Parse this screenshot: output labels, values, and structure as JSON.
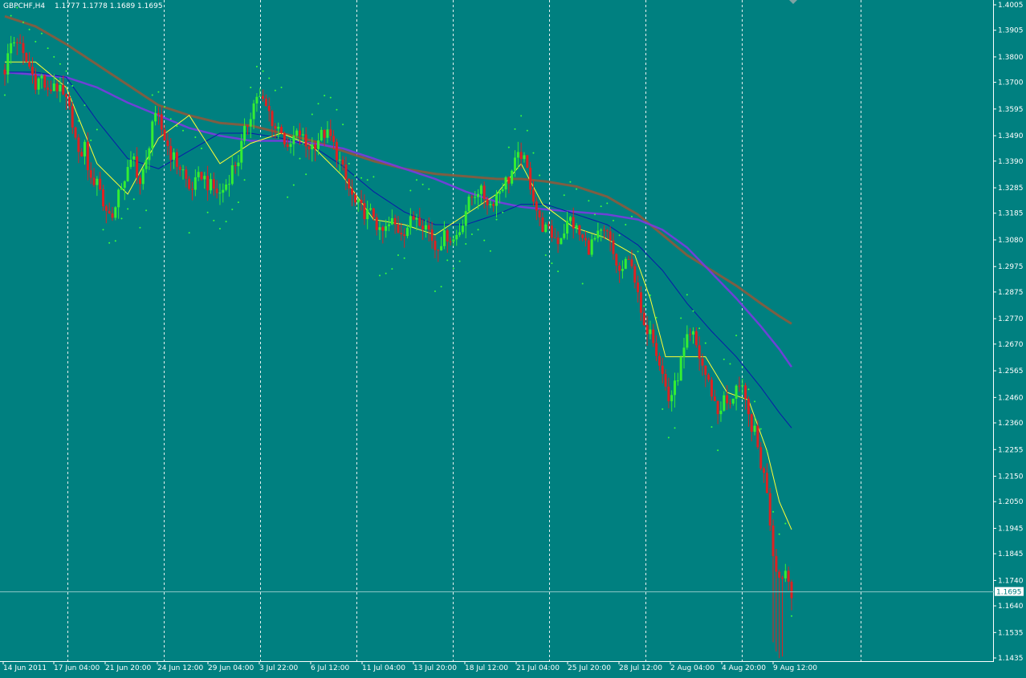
{
  "header": {
    "symbol_tf": "GBPCHF,H4",
    "ohlc": "1.1777 1.1778 1.1689 1.1695"
  },
  "colors": {
    "background": "#008080",
    "bull_candle": "#33ee33",
    "bear_candle": "#dd2222",
    "ma_fast": "#ffff33",
    "ma_slow_blue": "#0a1aa8",
    "ma_violet": "#7a3ae0",
    "ma_brown": "#8b5a3c",
    "psar": "#3aff3a",
    "grid": "#ffffff",
    "current_price_line": "#8fc7c7"
  },
  "chart_data": {
    "type": "candlestick",
    "symbol": "GBPCHF",
    "timeframe": "H4",
    "y_ticks": [
      "1.4005",
      "1.3905",
      "1.3800",
      "1.3700",
      "1.3595",
      "1.3490",
      "1.3390",
      "1.3285",
      "1.3185",
      "1.3080",
      "1.2975",
      "1.2875",
      "1.2770",
      "1.2670",
      "1.2565",
      "1.2460",
      "1.2360",
      "1.2255",
      "1.2150",
      "1.2050",
      "1.1945",
      "1.1845",
      "1.1740",
      "1.1640",
      "1.1535",
      "1.1435"
    ],
    "ylim": [
      1.1435,
      1.4005
    ],
    "current_price": "1.1695",
    "x_ticks": [
      "14 Jun 2011",
      "17 Jun 04:00",
      "21 Jun 20:00",
      "24 Jun 12:00",
      "29 Jun 04:00",
      "3 Jul 22:00",
      "6 Jul 12:00",
      "11 Jul 04:00",
      "13 Jul 20:00",
      "18 Jul 12:00",
      "21 Jul 04:00",
      "25 Jul 20:00",
      "28 Jul 12:00",
      "2 Aug 04:00",
      "4 Aug 20:00",
      "9 Aug 12:00"
    ],
    "close_path": [
      [
        0,
        1.375
      ],
      [
        2,
        1.385
      ],
      [
        4,
        1.387
      ],
      [
        6,
        1.38
      ],
      [
        8,
        1.376
      ],
      [
        10,
        1.37
      ],
      [
        12,
        1.372
      ],
      [
        14,
        1.365
      ],
      [
        16,
        1.37
      ],
      [
        18,
        1.366
      ],
      [
        20,
        1.362
      ],
      [
        22,
        1.355
      ],
      [
        24,
        1.34
      ],
      [
        26,
        1.345
      ],
      [
        28,
        1.33
      ],
      [
        30,
        1.333
      ],
      [
        32,
        1.322
      ],
      [
        34,
        1.318
      ],
      [
        36,
        1.32
      ],
      [
        38,
        1.33
      ],
      [
        40,
        1.335
      ],
      [
        42,
        1.34
      ],
      [
        44,
        1.33
      ],
      [
        46,
        1.338
      ],
      [
        48,
        1.355
      ],
      [
        50,
        1.355
      ],
      [
        52,
        1.348
      ],
      [
        54,
        1.342
      ],
      [
        56,
        1.338
      ],
      [
        58,
        1.335
      ],
      [
        60,
        1.328
      ],
      [
        62,
        1.33
      ],
      [
        64,
        1.334
      ],
      [
        66,
        1.33
      ],
      [
        68,
        1.328
      ],
      [
        70,
        1.326
      ],
      [
        72,
        1.33
      ],
      [
        74,
        1.336
      ],
      [
        76,
        1.34
      ],
      [
        78,
        1.35
      ],
      [
        80,
        1.358
      ],
      [
        82,
        1.365
      ],
      [
        84,
        1.362
      ],
      [
        86,
        1.358
      ],
      [
        88,
        1.352
      ],
      [
        90,
        1.352
      ],
      [
        92,
        1.342
      ],
      [
        94,
        1.348
      ],
      [
        96,
        1.35
      ],
      [
        98,
        1.345
      ],
      [
        100,
        1.345
      ],
      [
        102,
        1.348
      ],
      [
        104,
        1.35
      ],
      [
        106,
        1.348
      ],
      [
        108,
        1.342
      ],
      [
        110,
        1.335
      ],
      [
        112,
        1.328
      ],
      [
        114,
        1.322
      ],
      [
        116,
        1.32
      ],
      [
        118,
        1.318
      ],
      [
        120,
        1.318
      ],
      [
        122,
        1.31
      ],
      [
        124,
        1.312
      ],
      [
        126,
        1.315
      ],
      [
        128,
        1.312
      ],
      [
        130,
        1.312
      ],
      [
        132,
        1.315
      ],
      [
        134,
        1.318
      ],
      [
        136,
        1.315
      ],
      [
        138,
        1.312
      ],
      [
        140,
        1.305
      ],
      [
        142,
        1.308
      ],
      [
        144,
        1.31
      ],
      [
        146,
        1.308
      ],
      [
        148,
        1.312
      ],
      [
        150,
        1.32
      ],
      [
        152,
        1.325
      ],
      [
        154,
        1.328
      ],
      [
        156,
        1.325
      ],
      [
        158,
        1.322
      ],
      [
        160,
        1.326
      ],
      [
        162,
        1.33
      ],
      [
        164,
        1.332
      ],
      [
        166,
        1.338
      ],
      [
        168,
        1.342
      ],
      [
        170,
        1.335
      ],
      [
        172,
        1.325
      ],
      [
        174,
        1.315
      ],
      [
        176,
        1.312
      ],
      [
        178,
        1.31
      ],
      [
        180,
        1.308
      ],
      [
        182,
        1.312
      ],
      [
        184,
        1.316
      ],
      [
        186,
        1.312
      ],
      [
        188,
        1.308
      ],
      [
        190,
        1.305
      ],
      [
        192,
        1.308
      ],
      [
        194,
        1.31
      ],
      [
        196,
        1.31
      ],
      [
        198,
        1.302
      ],
      [
        200,
        1.295
      ],
      [
        202,
        1.298
      ],
      [
        204,
        1.3
      ],
      [
        206,
        1.285
      ],
      [
        208,
        1.272
      ],
      [
        210,
        1.275
      ],
      [
        212,
        1.265
      ],
      [
        214,
        1.255
      ],
      [
        216,
        1.245
      ],
      [
        218,
        1.25
      ],
      [
        220,
        1.26
      ],
      [
        222,
        1.268
      ],
      [
        224,
        1.27
      ],
      [
        226,
        1.262
      ],
      [
        228,
        1.255
      ],
      [
        230,
        1.248
      ],
      [
        232,
        1.24
      ],
      [
        234,
        1.245
      ],
      [
        236,
        1.242
      ],
      [
        238,
        1.252
      ],
      [
        240,
        1.248
      ],
      [
        242,
        1.238
      ],
      [
        244,
        1.232
      ],
      [
        246,
        1.22
      ],
      [
        248,
        1.21
      ],
      [
        250,
        1.185
      ],
      [
        252,
        1.175
      ],
      [
        254,
        1.178
      ],
      [
        256,
        1.17
      ]
    ],
    "ma_fast_path": [
      [
        0,
        1.378
      ],
      [
        10,
        1.378
      ],
      [
        20,
        1.368
      ],
      [
        30,
        1.338
      ],
      [
        40,
        1.326
      ],
      [
        50,
        1.348
      ],
      [
        60,
        1.357
      ],
      [
        70,
        1.338
      ],
      [
        80,
        1.346
      ],
      [
        90,
        1.35
      ],
      [
        100,
        1.345
      ],
      [
        110,
        1.333
      ],
      [
        120,
        1.316
      ],
      [
        130,
        1.314
      ],
      [
        140,
        1.31
      ],
      [
        150,
        1.318
      ],
      [
        160,
        1.326
      ],
      [
        168,
        1.338
      ],
      [
        175,
        1.322
      ],
      [
        185,
        1.313
      ],
      [
        195,
        1.309
      ],
      [
        205,
        1.302
      ],
      [
        210,
        1.285
      ],
      [
        215,
        1.262
      ],
      [
        220,
        1.262
      ],
      [
        228,
        1.262
      ],
      [
        235,
        1.248
      ],
      [
        242,
        1.245
      ],
      [
        248,
        1.225
      ],
      [
        252,
        1.205
      ],
      [
        256,
        1.194
      ]
    ],
    "ma_blue_path": [
      [
        0,
        1.374
      ],
      [
        10,
        1.374
      ],
      [
        20,
        1.372
      ],
      [
        30,
        1.355
      ],
      [
        40,
        1.34
      ],
      [
        50,
        1.336
      ],
      [
        60,
        1.343
      ],
      [
        70,
        1.35
      ],
      [
        80,
        1.35
      ],
      [
        90,
        1.348
      ],
      [
        100,
        1.345
      ],
      [
        110,
        1.337
      ],
      [
        120,
        1.327
      ],
      [
        130,
        1.319
      ],
      [
        140,
        1.314
      ],
      [
        150,
        1.314
      ],
      [
        160,
        1.318
      ],
      [
        168,
        1.322
      ],
      [
        176,
        1.322
      ],
      [
        186,
        1.318
      ],
      [
        196,
        1.314
      ],
      [
        206,
        1.306
      ],
      [
        214,
        1.296
      ],
      [
        222,
        1.283
      ],
      [
        230,
        1.272
      ],
      [
        238,
        1.262
      ],
      [
        246,
        1.25
      ],
      [
        252,
        1.24
      ],
      [
        256,
        1.234
      ]
    ],
    "ma_violet_path": [
      [
        0,
        1.374
      ],
      [
        10,
        1.373
      ],
      [
        20,
        1.372
      ],
      [
        30,
        1.368
      ],
      [
        40,
        1.362
      ],
      [
        50,
        1.357
      ],
      [
        60,
        1.352
      ],
      [
        70,
        1.349
      ],
      [
        80,
        1.347
      ],
      [
        90,
        1.347
      ],
      [
        100,
        1.346
      ],
      [
        110,
        1.344
      ],
      [
        120,
        1.34
      ],
      [
        130,
        1.336
      ],
      [
        140,
        1.332
      ],
      [
        150,
        1.327
      ],
      [
        160,
        1.323
      ],
      [
        168,
        1.321
      ],
      [
        176,
        1.32
      ],
      [
        186,
        1.319
      ],
      [
        196,
        1.318
      ],
      [
        206,
        1.316
      ],
      [
        214,
        1.312
      ],
      [
        222,
        1.305
      ],
      [
        230,
        1.295
      ],
      [
        238,
        1.285
      ],
      [
        246,
        1.274
      ],
      [
        252,
        1.265
      ],
      [
        256,
        1.258
      ]
    ],
    "ma_brown_path": [
      [
        0,
        1.396
      ],
      [
        10,
        1.392
      ],
      [
        20,
        1.385
      ],
      [
        30,
        1.377
      ],
      [
        40,
        1.369
      ],
      [
        50,
        1.361
      ],
      [
        60,
        1.357
      ],
      [
        70,
        1.354
      ],
      [
        80,
        1.353
      ],
      [
        90,
        1.35
      ],
      [
        100,
        1.347
      ],
      [
        110,
        1.343
      ],
      [
        120,
        1.339
      ],
      [
        130,
        1.336
      ],
      [
        140,
        1.334
      ],
      [
        150,
        1.333
      ],
      [
        160,
        1.332
      ],
      [
        168,
        1.332
      ],
      [
        176,
        1.331
      ],
      [
        186,
        1.329
      ],
      [
        196,
        1.325
      ],
      [
        206,
        1.318
      ],
      [
        214,
        1.31
      ],
      [
        222,
        1.302
      ],
      [
        230,
        1.296
      ],
      [
        238,
        1.29
      ],
      [
        246,
        1.283
      ],
      [
        252,
        1.278
      ],
      [
        256,
        1.275
      ]
    ]
  }
}
